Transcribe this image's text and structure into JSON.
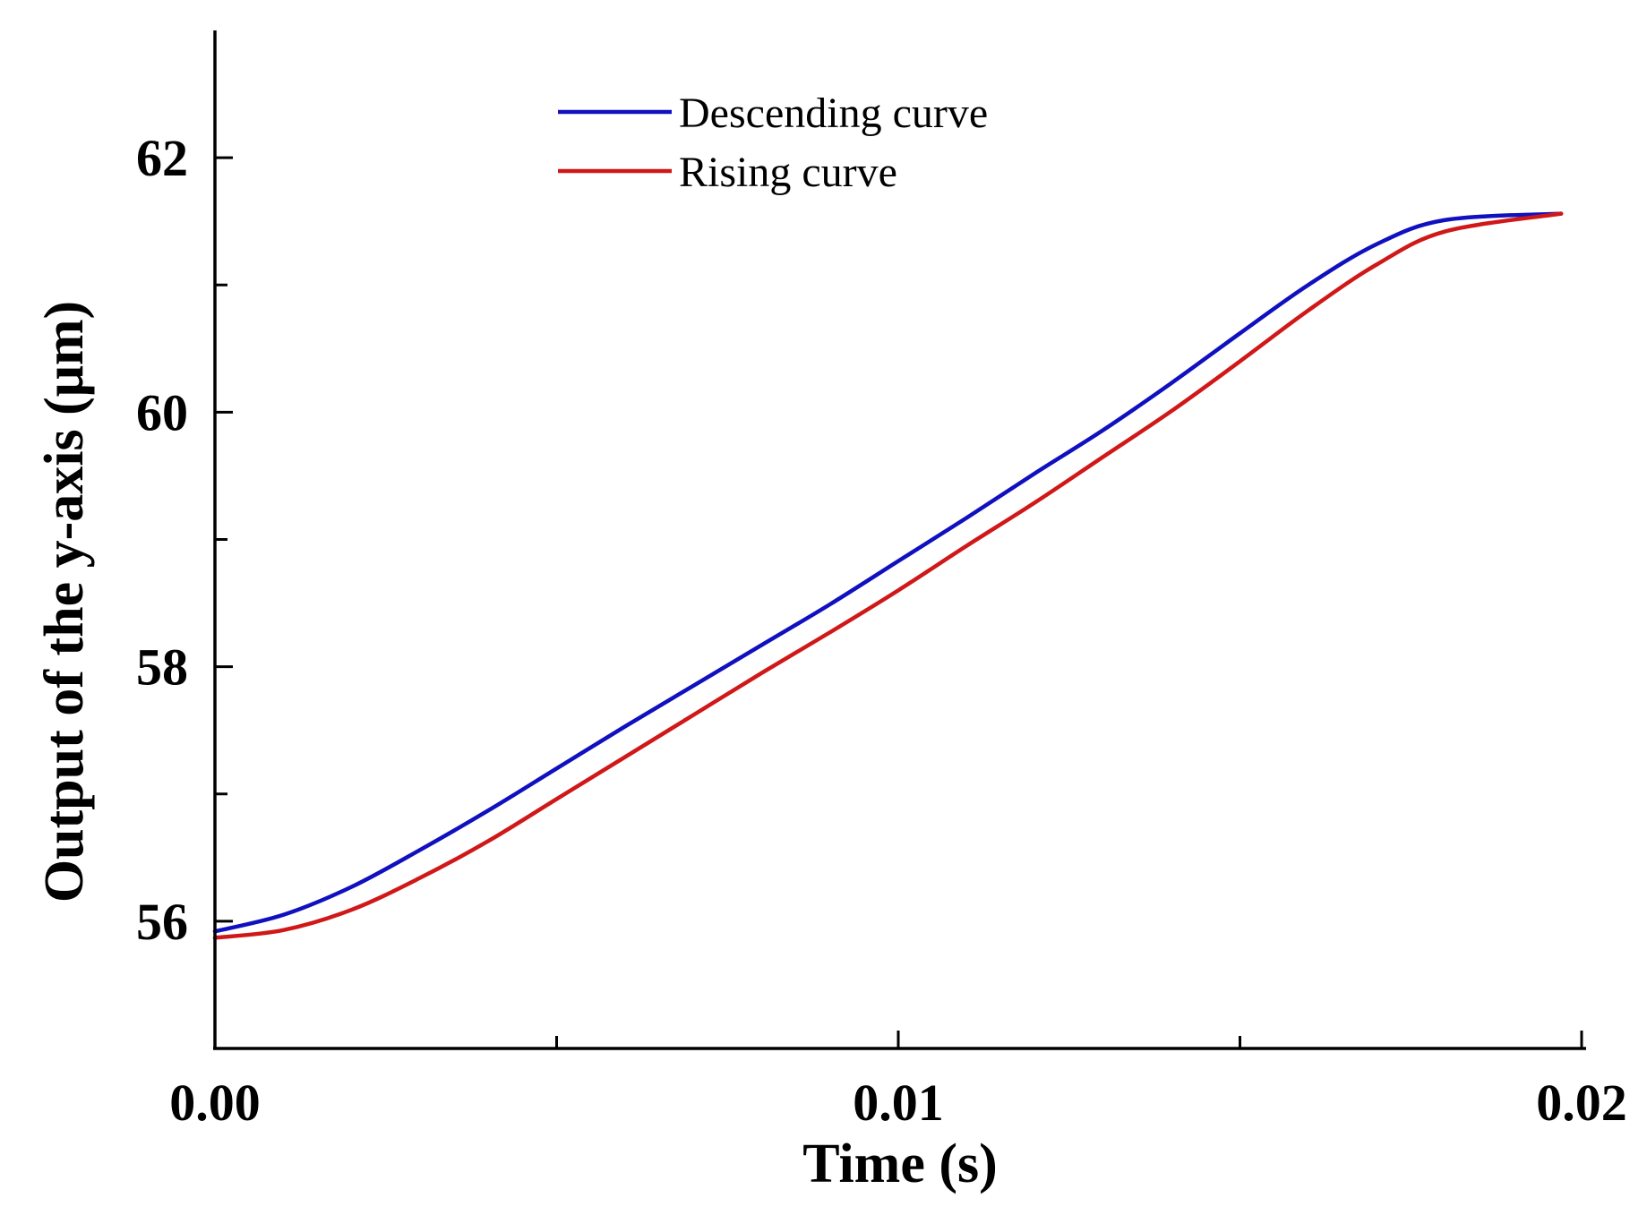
{
  "chart_data": {
    "type": "line",
    "title": "",
    "xlabel": "Time (s)",
    "ylabel": "Output of the y-axis (μm)",
    "xlim": [
      0.0,
      0.02
    ],
    "ylim": [
      55.0,
      63.0
    ],
    "x_ticks": [
      0.0,
      0.005,
      0.01,
      0.015,
      0.02
    ],
    "x_tick_labels": [
      "0.00",
      "",
      "0.01",
      "",
      "0.02"
    ],
    "y_ticks": [
      56,
      57,
      58,
      59,
      60,
      61,
      62
    ],
    "y_tick_labels": [
      "56",
      "",
      "58",
      "",
      "60",
      "",
      "62"
    ],
    "grid": false,
    "legend_position": "top-center",
    "series": [
      {
        "name": "Descending curve",
        "color": "#1010c0",
        "x": [
          0.0,
          0.001,
          0.002,
          0.003,
          0.004,
          0.005,
          0.006,
          0.007,
          0.008,
          0.009,
          0.01,
          0.011,
          0.012,
          0.013,
          0.014,
          0.015,
          0.016,
          0.017,
          0.018,
          0.0197
        ],
        "y": [
          55.92,
          56.05,
          56.27,
          56.56,
          56.87,
          57.2,
          57.53,
          57.85,
          58.17,
          58.49,
          58.83,
          59.17,
          59.52,
          59.86,
          60.23,
          60.62,
          61.0,
          61.32,
          61.51,
          61.56
        ]
      },
      {
        "name": "Rising curve",
        "color": "#d01818",
        "x": [
          0.0,
          0.001,
          0.002,
          0.003,
          0.004,
          0.005,
          0.006,
          0.007,
          0.008,
          0.009,
          0.01,
          0.011,
          0.012,
          0.013,
          0.014,
          0.015,
          0.016,
          0.017,
          0.018,
          0.0197
        ],
        "y": [
          55.87,
          55.93,
          56.09,
          56.34,
          56.63,
          56.96,
          57.29,
          57.62,
          57.95,
          58.27,
          58.6,
          58.95,
          59.29,
          59.65,
          60.01,
          60.4,
          60.8,
          61.16,
          61.42,
          61.56
        ]
      }
    ]
  }
}
